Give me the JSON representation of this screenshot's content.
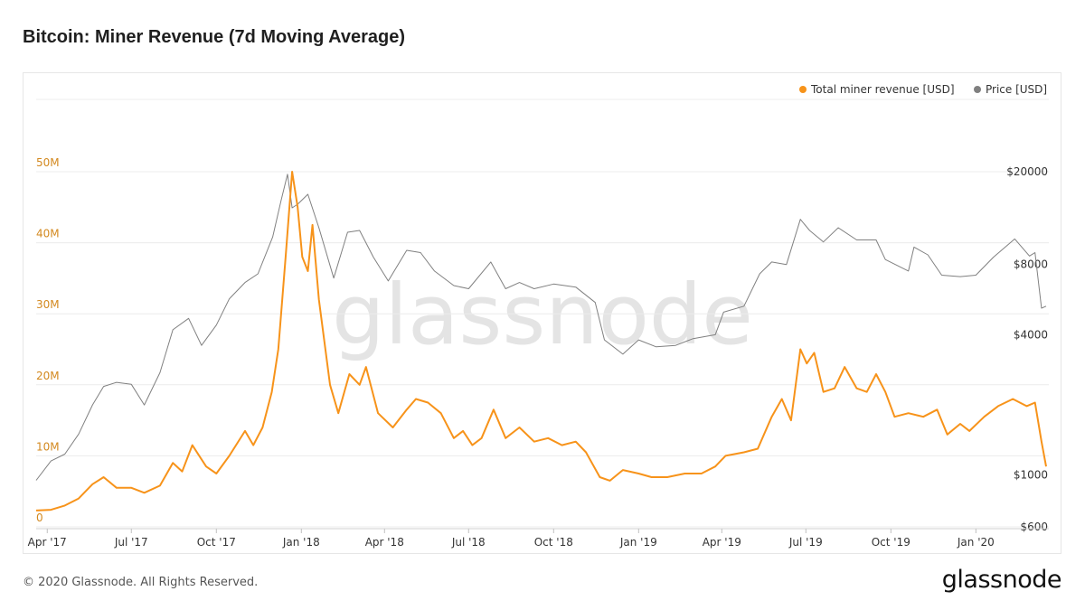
{
  "title": "Bitcoin: Miner Revenue (7d Moving Average)",
  "footer": "© 2020 Glassnode. All Rights Reserved.",
  "logo": "glassnode",
  "watermark": "glassnode",
  "colors": {
    "revenue": "#f7931a",
    "price": "#808080",
    "left_axis": "#d3891f",
    "grid": "#ececec"
  },
  "chart_data": {
    "type": "line",
    "title": "Bitcoin: Miner Revenue (7d Moving Average)",
    "x_start": "2017-03-20",
    "x_end": "2020-03-17",
    "x_ticks": [
      {
        "date": "2017-04-01",
        "label": "Apr '17"
      },
      {
        "date": "2017-07-01",
        "label": "Jul '17"
      },
      {
        "date": "2017-10-01",
        "label": "Oct '17"
      },
      {
        "date": "2018-01-01",
        "label": "Jan '18"
      },
      {
        "date": "2018-04-01",
        "label": "Apr '18"
      },
      {
        "date": "2018-07-01",
        "label": "Jul '18"
      },
      {
        "date": "2018-10-01",
        "label": "Oct '18"
      },
      {
        "date": "2019-01-01",
        "label": "Jan '19"
      },
      {
        "date": "2019-04-01",
        "label": "Apr '19"
      },
      {
        "date": "2019-07-01",
        "label": "Jul '19"
      },
      {
        "date": "2019-10-01",
        "label": "Oct '19"
      },
      {
        "date": "2020-01-01",
        "label": "Jan '20"
      }
    ],
    "left_axis": {
      "ylim": [
        0,
        50000000
      ],
      "ticks": [
        {
          "value": 0,
          "label": "0"
        },
        {
          "value": 10000000,
          "label": "10M"
        },
        {
          "value": 20000000,
          "label": "20M"
        },
        {
          "value": 30000000,
          "label": "30M"
        },
        {
          "value": 40000000,
          "label": "40M"
        },
        {
          "value": 50000000,
          "label": "50M"
        }
      ]
    },
    "right_axis": {
      "scale": "log",
      "ylim": [
        600,
        20000
      ],
      "ticks": [
        {
          "value": 600,
          "label": "$600"
        },
        {
          "value": 1000,
          "label": "$1000"
        },
        {
          "value": 4000,
          "label": "$4000"
        },
        {
          "value": 8000,
          "label": "$8000"
        },
        {
          "value": 20000,
          "label": "$20000"
        }
      ]
    },
    "grid": true,
    "legend_position": "top-right",
    "series": [
      {
        "name": "Total miner revenue [USD]",
        "axis": "left",
        "color": "#f7931a",
        "points": [
          [
            "2017-03-20",
            2300000
          ],
          [
            "2017-04-05",
            2400000
          ],
          [
            "2017-04-20",
            3000000
          ],
          [
            "2017-05-05",
            4000000
          ],
          [
            "2017-05-20",
            6000000
          ],
          [
            "2017-06-01",
            7000000
          ],
          [
            "2017-06-15",
            5500000
          ],
          [
            "2017-07-01",
            5500000
          ],
          [
            "2017-07-15",
            4800000
          ],
          [
            "2017-08-01",
            5800000
          ],
          [
            "2017-08-15",
            9000000
          ],
          [
            "2017-08-25",
            7800000
          ],
          [
            "2017-09-05",
            11500000
          ],
          [
            "2017-09-20",
            8500000
          ],
          [
            "2017-10-01",
            7500000
          ],
          [
            "2017-10-15",
            10000000
          ],
          [
            "2017-11-01",
            13500000
          ],
          [
            "2017-11-10",
            11500000
          ],
          [
            "2017-11-20",
            14000000
          ],
          [
            "2017-11-30",
            19000000
          ],
          [
            "2017-12-07",
            25000000
          ],
          [
            "2017-12-15",
            38000000
          ],
          [
            "2017-12-22",
            50000000
          ],
          [
            "2017-12-28",
            45000000
          ],
          [
            "2018-01-02",
            38000000
          ],
          [
            "2018-01-08",
            36000000
          ],
          [
            "2018-01-13",
            42500000
          ],
          [
            "2018-01-20",
            32000000
          ],
          [
            "2018-02-01",
            20000000
          ],
          [
            "2018-02-10",
            16000000
          ],
          [
            "2018-02-22",
            21500000
          ],
          [
            "2018-03-05",
            20000000
          ],
          [
            "2018-03-12",
            22500000
          ],
          [
            "2018-03-25",
            16000000
          ],
          [
            "2018-04-10",
            14000000
          ],
          [
            "2018-04-25",
            16500000
          ],
          [
            "2018-05-05",
            18000000
          ],
          [
            "2018-05-18",
            17500000
          ],
          [
            "2018-06-01",
            16000000
          ],
          [
            "2018-06-15",
            12500000
          ],
          [
            "2018-06-25",
            13500000
          ],
          [
            "2018-07-05",
            11500000
          ],
          [
            "2018-07-15",
            12500000
          ],
          [
            "2018-07-28",
            16500000
          ],
          [
            "2018-08-10",
            12500000
          ],
          [
            "2018-08-25",
            14000000
          ],
          [
            "2018-09-10",
            12000000
          ],
          [
            "2018-09-25",
            12500000
          ],
          [
            "2018-10-10",
            11500000
          ],
          [
            "2018-10-25",
            12000000
          ],
          [
            "2018-11-05",
            10500000
          ],
          [
            "2018-11-20",
            7000000
          ],
          [
            "2018-12-01",
            6500000
          ],
          [
            "2018-12-15",
            8000000
          ],
          [
            "2019-01-01",
            7500000
          ],
          [
            "2019-01-15",
            7000000
          ],
          [
            "2019-02-01",
            7000000
          ],
          [
            "2019-02-20",
            7500000
          ],
          [
            "2019-03-10",
            7500000
          ],
          [
            "2019-03-25",
            8500000
          ],
          [
            "2019-04-05",
            10000000
          ],
          [
            "2019-04-25",
            10500000
          ],
          [
            "2019-05-10",
            11000000
          ],
          [
            "2019-05-25",
            15500000
          ],
          [
            "2019-06-05",
            18000000
          ],
          [
            "2019-06-15",
            15000000
          ],
          [
            "2019-06-25",
            25000000
          ],
          [
            "2019-07-02",
            23000000
          ],
          [
            "2019-07-10",
            24500000
          ],
          [
            "2019-07-20",
            19000000
          ],
          [
            "2019-08-01",
            19500000
          ],
          [
            "2019-08-12",
            22500000
          ],
          [
            "2019-08-25",
            19500000
          ],
          [
            "2019-09-05",
            19000000
          ],
          [
            "2019-09-15",
            21500000
          ],
          [
            "2019-09-25",
            19000000
          ],
          [
            "2019-10-05",
            15500000
          ],
          [
            "2019-10-20",
            16000000
          ],
          [
            "2019-11-05",
            15500000
          ],
          [
            "2019-11-20",
            16500000
          ],
          [
            "2019-12-01",
            13000000
          ],
          [
            "2019-12-15",
            14500000
          ],
          [
            "2019-12-25",
            13500000
          ],
          [
            "2020-01-10",
            15500000
          ],
          [
            "2020-01-25",
            17000000
          ],
          [
            "2020-02-10",
            18000000
          ],
          [
            "2020-02-25",
            17000000
          ],
          [
            "2020-03-05",
            17500000
          ],
          [
            "2020-03-12",
            12000000
          ],
          [
            "2020-03-17",
            8500000
          ]
        ]
      },
      {
        "name": "Price [USD]",
        "axis": "right",
        "color": "#808080",
        "points": [
          [
            "2017-03-20",
            950
          ],
          [
            "2017-04-05",
            1150
          ],
          [
            "2017-04-20",
            1230
          ],
          [
            "2017-05-05",
            1500
          ],
          [
            "2017-05-20",
            2000
          ],
          [
            "2017-06-01",
            2400
          ],
          [
            "2017-06-15",
            2500
          ],
          [
            "2017-07-01",
            2450
          ],
          [
            "2017-07-15",
            2000
          ],
          [
            "2017-08-01",
            2750
          ],
          [
            "2017-08-15",
            4200
          ],
          [
            "2017-09-01",
            4700
          ],
          [
            "2017-09-15",
            3600
          ],
          [
            "2017-10-01",
            4400
          ],
          [
            "2017-10-15",
            5700
          ],
          [
            "2017-11-01",
            6700
          ],
          [
            "2017-11-15",
            7300
          ],
          [
            "2017-12-01",
            10500
          ],
          [
            "2017-12-10",
            15000
          ],
          [
            "2017-12-17",
            19500
          ],
          [
            "2017-12-22",
            14000
          ],
          [
            "2017-12-28",
            14500
          ],
          [
            "2018-01-08",
            16000
          ],
          [
            "2018-01-20",
            11500
          ],
          [
            "2018-02-05",
            7000
          ],
          [
            "2018-02-20",
            11000
          ],
          [
            "2018-03-05",
            11200
          ],
          [
            "2018-03-20",
            8600
          ],
          [
            "2018-04-05",
            6800
          ],
          [
            "2018-04-25",
            9200
          ],
          [
            "2018-05-10",
            9000
          ],
          [
            "2018-05-25",
            7500
          ],
          [
            "2018-06-15",
            6500
          ],
          [
            "2018-07-01",
            6300
          ],
          [
            "2018-07-25",
            8200
          ],
          [
            "2018-08-10",
            6300
          ],
          [
            "2018-08-25",
            6700
          ],
          [
            "2018-09-10",
            6300
          ],
          [
            "2018-10-01",
            6600
          ],
          [
            "2018-10-25",
            6400
          ],
          [
            "2018-11-15",
            5500
          ],
          [
            "2018-11-25",
            3800
          ],
          [
            "2018-12-15",
            3300
          ],
          [
            "2019-01-01",
            3800
          ],
          [
            "2019-01-20",
            3550
          ],
          [
            "2019-02-10",
            3600
          ],
          [
            "2019-03-01",
            3850
          ],
          [
            "2019-03-25",
            4000
          ],
          [
            "2019-04-03",
            5000
          ],
          [
            "2019-04-25",
            5300
          ],
          [
            "2019-05-12",
            7300
          ],
          [
            "2019-05-25",
            8200
          ],
          [
            "2019-06-10",
            8000
          ],
          [
            "2019-06-25",
            12500
          ],
          [
            "2019-07-05",
            11200
          ],
          [
            "2019-07-20",
            10000
          ],
          [
            "2019-08-05",
            11500
          ],
          [
            "2019-08-25",
            10200
          ],
          [
            "2019-09-15",
            10200
          ],
          [
            "2019-09-25",
            8400
          ],
          [
            "2019-10-20",
            7500
          ],
          [
            "2019-10-26",
            9500
          ],
          [
            "2019-11-10",
            8800
          ],
          [
            "2019-11-25",
            7200
          ],
          [
            "2019-12-15",
            7100
          ],
          [
            "2020-01-01",
            7200
          ],
          [
            "2020-01-20",
            8600
          ],
          [
            "2020-02-12",
            10300
          ],
          [
            "2020-02-28",
            8700
          ],
          [
            "2020-03-05",
            9000
          ],
          [
            "2020-03-12",
            5200
          ],
          [
            "2020-03-17",
            5300
          ]
        ]
      }
    ]
  }
}
